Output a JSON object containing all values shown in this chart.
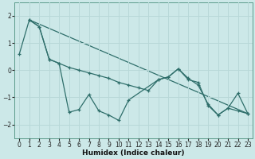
{
  "xlabel": "Humidex (Indice chaleur)",
  "background_color": "#cce8e8",
  "line_color": "#2e6e6a",
  "grid_color": "#b8d8d8",
  "ylim": [
    -2.5,
    2.5
  ],
  "xlim": [
    -0.5,
    23.5
  ],
  "line1_x": [
    0,
    1,
    2,
    3,
    4,
    5,
    6,
    7,
    8,
    9,
    10,
    11,
    14,
    15,
    16,
    17,
    18,
    19,
    20,
    21,
    22,
    23
  ],
  "line1_y": [
    0.6,
    1.85,
    1.6,
    0.4,
    0.25,
    -1.55,
    -1.45,
    -0.9,
    -1.5,
    -1.65,
    -1.85,
    -1.1,
    -0.35,
    -0.25,
    0.05,
    -0.35,
    -0.45,
    -1.3,
    -1.65,
    -1.4,
    -0.85,
    -1.6
  ],
  "line2_x": [
    1,
    2,
    3,
    4,
    5,
    6,
    7,
    8,
    9,
    10,
    11,
    12,
    13,
    14,
    15,
    16,
    17,
    18,
    19,
    20,
    21,
    22,
    23
  ],
  "line2_y": [
    1.85,
    1.6,
    0.4,
    0.25,
    0.1,
    0.0,
    -0.1,
    -0.2,
    -0.3,
    -0.45,
    -0.55,
    -0.65,
    -0.75,
    -0.35,
    -0.25,
    0.05,
    -0.3,
    -0.55,
    -1.25,
    -1.65,
    -1.4,
    -1.5,
    -1.6
  ],
  "line3_x": [
    1,
    23
  ],
  "line3_y": [
    1.85,
    -1.6
  ]
}
